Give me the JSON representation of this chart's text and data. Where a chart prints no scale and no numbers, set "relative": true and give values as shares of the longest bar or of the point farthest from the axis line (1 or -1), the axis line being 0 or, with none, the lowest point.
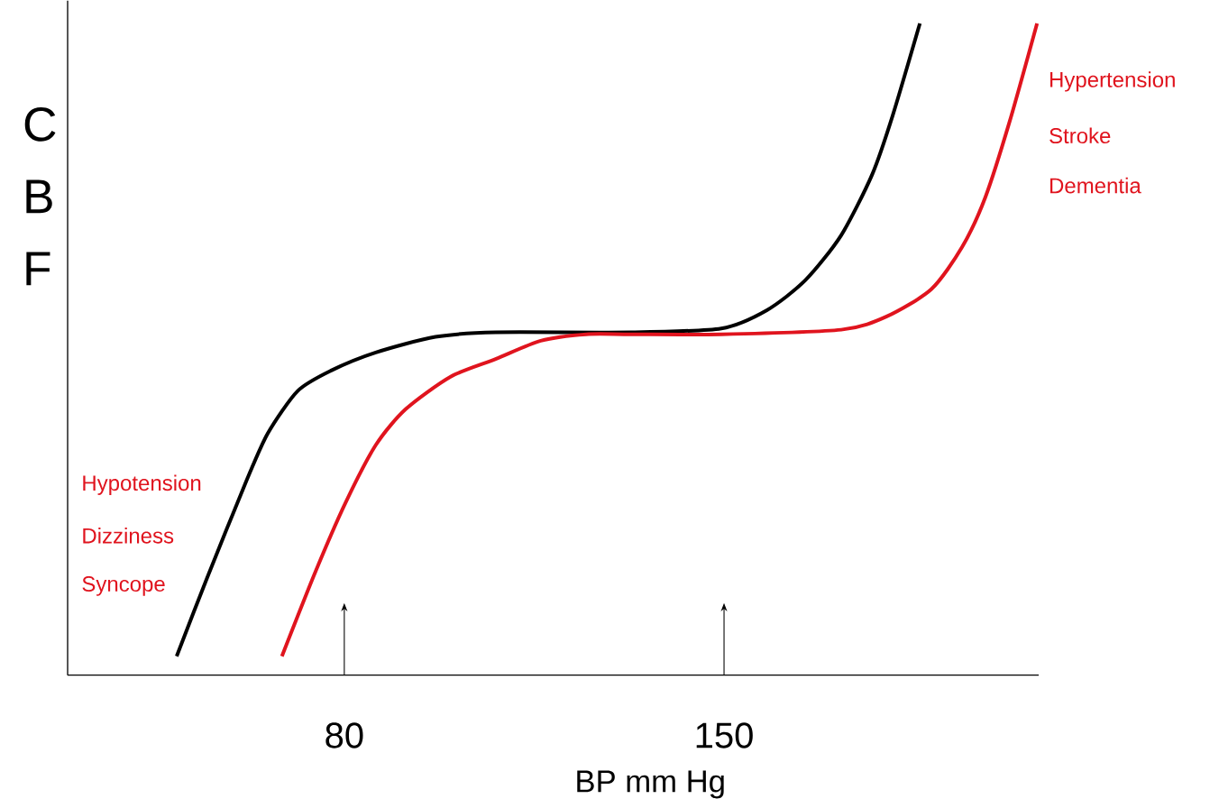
{
  "chart_data": {
    "type": "line",
    "xlabel": "BP mm Hg",
    "ylabel": "C B F",
    "relative": true,
    "xlim": [
      29,
      208
    ],
    "xticks": [
      80,
      150
    ],
    "annotations": [
      "Hypotension",
      "Dizziness",
      "Syncope",
      "Hypertension",
      "Stroke",
      "Dementia"
    ],
    "series": [
      {
        "color": "#000000",
        "x": [
          49.1,
          54.7,
          61.9,
          65.9,
          71.4,
          77.5,
          85.8,
          96.8,
          107.9,
          132.9,
          149.5,
          157.9,
          165.0,
          171.6,
          177.3,
          181.1,
          186.1
        ],
        "values": [
          0.029,
          0.149,
          0.297,
          0.371,
          0.436,
          0.467,
          0.495,
          0.519,
          0.526,
          0.526,
          0.532,
          0.56,
          0.606,
          0.675,
          0.768,
          0.859,
          1.0
        ]
      },
      {
        "color": "#e0141e",
        "x": [
          68.5,
          74.7,
          80.2,
          85.8,
          91.3,
          99.6,
          107.9,
          116.2,
          124.6,
          132.9,
          149.5,
          171.6,
          179.9,
          188.2,
          193.9,
          198.2,
          202.7,
          207.7
        ],
        "values": [
          0.029,
          0.159,
          0.264,
          0.353,
          0.408,
          0.458,
          0.485,
          0.513,
          0.523,
          0.523,
          0.523,
          0.53,
          0.55,
          0.592,
          0.657,
          0.734,
          0.851,
          1.0
        ]
      }
    ]
  }
}
